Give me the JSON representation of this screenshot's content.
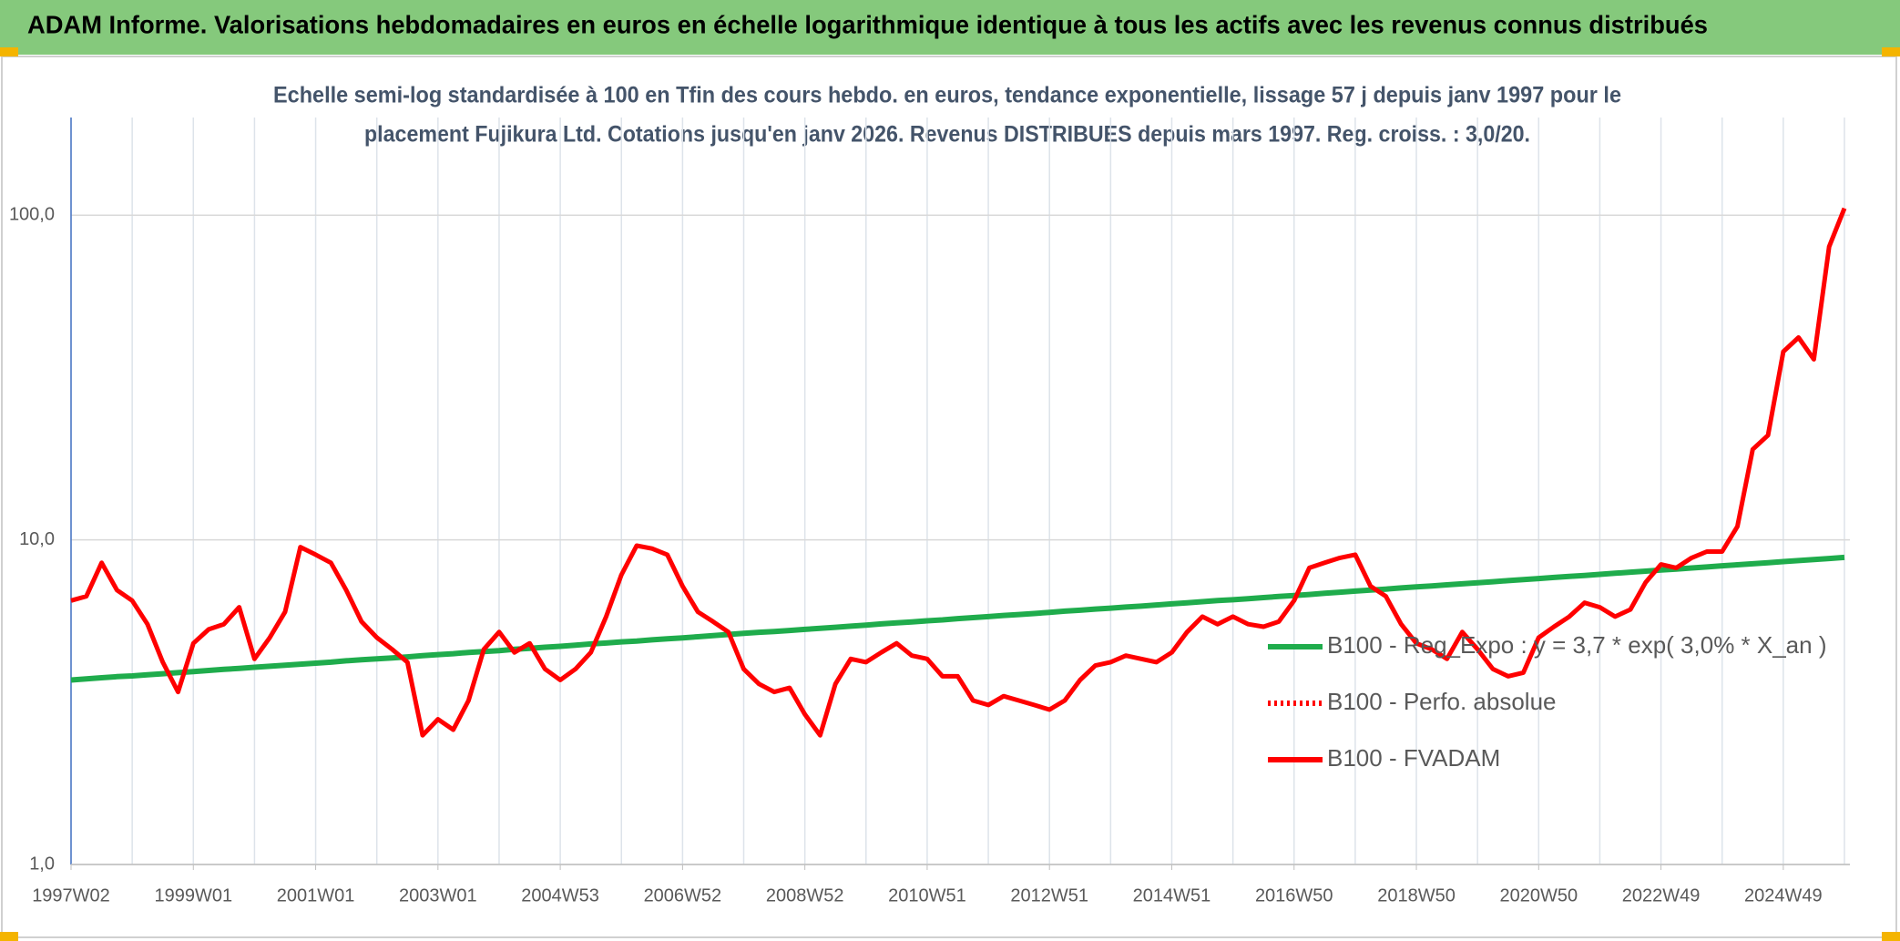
{
  "chart_data": {
    "type": "line",
    "title": "ADAM Informe. Valorisations hebdomadaires en euros en échelle logarithmique identique à tous les actifs avec les revenus connus distribués",
    "subtitle": [
      "Echelle semi-log standardisée à 100 en Tfin des cours hebdo. en euros, tendance exponentielle, lissage 57 j depuis janv 1997 pour le",
      "placement Fujikura Ltd. Cotations jusqu'en janv 2026. Revenus DISTRIBUES depuis mars 1997. Reg. croiss. : 3,0/20."
    ],
    "categories": [
      "1997W02",
      null,
      null,
      null,
      null,
      null,
      null,
      null,
      "1999W01",
      null,
      null,
      null,
      null,
      null,
      null,
      null,
      "2001W01",
      null,
      null,
      null,
      null,
      null,
      null,
      null,
      "2003W01",
      null,
      null,
      null,
      null,
      null,
      null,
      null,
      "2004W53",
      null,
      null,
      null,
      null,
      null,
      null,
      null,
      "2006W52",
      null,
      null,
      null,
      null,
      null,
      null,
      null,
      "2008W52",
      null,
      null,
      null,
      null,
      null,
      null,
      null,
      "2010W51",
      null,
      null,
      null,
      null,
      null,
      null,
      null,
      "2012W51",
      null,
      null,
      null,
      null,
      null,
      null,
      null,
      "2014W51",
      null,
      null,
      null,
      null,
      null,
      null,
      null,
      "2016W50",
      null,
      null,
      null,
      null,
      null,
      null,
      null,
      "2018W50",
      null,
      null,
      null,
      null,
      null,
      null,
      null,
      "2020W50",
      null,
      null,
      null,
      null,
      null,
      null,
      null,
      "2022W49",
      null,
      null,
      null,
      null,
      null,
      null,
      null,
      "2024W49",
      null,
      null,
      null,
      null
    ],
    "log_y": true,
    "ylim": [
      1,
      200
    ],
    "yticks": [
      {
        "value": 1,
        "label": "1,0"
      },
      {
        "value": 10,
        "label": "10,0"
      },
      {
        "value": 100,
        "label": "100,0"
      }
    ],
    "grid": true,
    "series": [
      {
        "name": "B100 - Reg_Expo : y = 3,7 * exp( 3,0% *  X_an )",
        "color": "#1fac4c",
        "line_style": "solid",
        "values": [
          3.7,
          3.73,
          3.76,
          3.79,
          3.81,
          3.84,
          3.87,
          3.9,
          3.93,
          3.96,
          3.99,
          4.02,
          4.05,
          4.08,
          4.11,
          4.14,
          4.17,
          4.2,
          4.24,
          4.27,
          4.3,
          4.33,
          4.36,
          4.4,
          4.43,
          4.46,
          4.5,
          4.53,
          4.56,
          4.6,
          4.63,
          4.67,
          4.7,
          4.74,
          4.78,
          4.81,
          4.85,
          4.88,
          4.92,
          4.96,
          4.99,
          5.03,
          5.07,
          5.11,
          5.15,
          5.19,
          5.22,
          5.26,
          5.3,
          5.34,
          5.38,
          5.42,
          5.46,
          5.51,
          5.55,
          5.59,
          5.63,
          5.67,
          5.72,
          5.76,
          5.8,
          5.85,
          5.89,
          5.93,
          5.98,
          6.03,
          6.07,
          6.12,
          6.16,
          6.21,
          6.25,
          6.3,
          6.35,
          6.4,
          6.45,
          6.5,
          6.54,
          6.59,
          6.64,
          6.69,
          6.74,
          6.79,
          6.85,
          6.9,
          6.95,
          7.0,
          7.05,
          7.11,
          7.16,
          7.21,
          7.27,
          7.32,
          7.38,
          7.43,
          7.49,
          7.54,
          7.6,
          7.66,
          7.72,
          7.77,
          7.83,
          7.89,
          7.95,
          8.01,
          8.07,
          8.13,
          8.19,
          8.25,
          8.32,
          8.38,
          8.44,
          8.5,
          8.57,
          8.63,
          8.7,
          8.76,
          8.83
        ]
      },
      {
        "name": "B100 - Perfo. absolue",
        "color": "#ff0000",
        "line_style": "dotted",
        "values": [
          null,
          null,
          null,
          null,
          null,
          null,
          null,
          null,
          null,
          null,
          null,
          null,
          null,
          null,
          null,
          null,
          null,
          null,
          null,
          null,
          null,
          null,
          null,
          null,
          null,
          null,
          null,
          null,
          null,
          null,
          null,
          null,
          null,
          null,
          null,
          null,
          null,
          null,
          null,
          null,
          null,
          null,
          null,
          null,
          null,
          null,
          null,
          null,
          null,
          null,
          null,
          null,
          null,
          null,
          null,
          null,
          null,
          null,
          null,
          null,
          null,
          null,
          null,
          null,
          null,
          null,
          null,
          null,
          null,
          null,
          null,
          null,
          null,
          null,
          null,
          null,
          null,
          null,
          null,
          null,
          null,
          null,
          null,
          null,
          null,
          null,
          null,
          null,
          null,
          null,
          null,
          null,
          null,
          null,
          null,
          null,
          null,
          null,
          null,
          null,
          null,
          null,
          null,
          null,
          null,
          null,
          null,
          null,
          null,
          null,
          null,
          null,
          null,
          null,
          null,
          null,
          null
        ]
      },
      {
        "name": "B100 - FVADAM",
        "color": "#ff0000",
        "line_style": "solid",
        "values": [
          6.5,
          6.7,
          8.5,
          7,
          6.5,
          5.5,
          4.2,
          3.4,
          4.8,
          5.3,
          5.5,
          6.2,
          4.3,
          5,
          6,
          9.5,
          9,
          8.5,
          7,
          5.6,
          5,
          4.6,
          4.2,
          2.5,
          2.8,
          2.6,
          3.2,
          4.6,
          5.2,
          4.5,
          4.8,
          4,
          3.7,
          4,
          4.5,
          5.8,
          7.8,
          9.6,
          9.4,
          9,
          7.2,
          6,
          5.6,
          5.2,
          4,
          3.6,
          3.4,
          3.5,
          2.9,
          2.5,
          3.6,
          4.3,
          4.2,
          4.5,
          4.8,
          4.4,
          4.3,
          3.8,
          3.8,
          3.2,
          3.1,
          3.3,
          3.2,
          3.1,
          3,
          3.2,
          3.7,
          4.1,
          4.2,
          4.4,
          4.3,
          4.2,
          4.5,
          5.2,
          5.8,
          5.5,
          5.8,
          5.5,
          5.4,
          5.6,
          6.5,
          8.2,
          8.5,
          8.8,
          9,
          7.2,
          6.7,
          5.5,
          4.8,
          4.6,
          4.3,
          5.2,
          4.6,
          4,
          3.8,
          3.9,
          5,
          5.4,
          5.8,
          6.4,
          6.2,
          5.8,
          6.1,
          7.4,
          8.4,
          8.2,
          8.8,
          9.2,
          9.2,
          11,
          19,
          21,
          38,
          42,
          36,
          80,
          105
        ]
      }
    ]
  }
}
